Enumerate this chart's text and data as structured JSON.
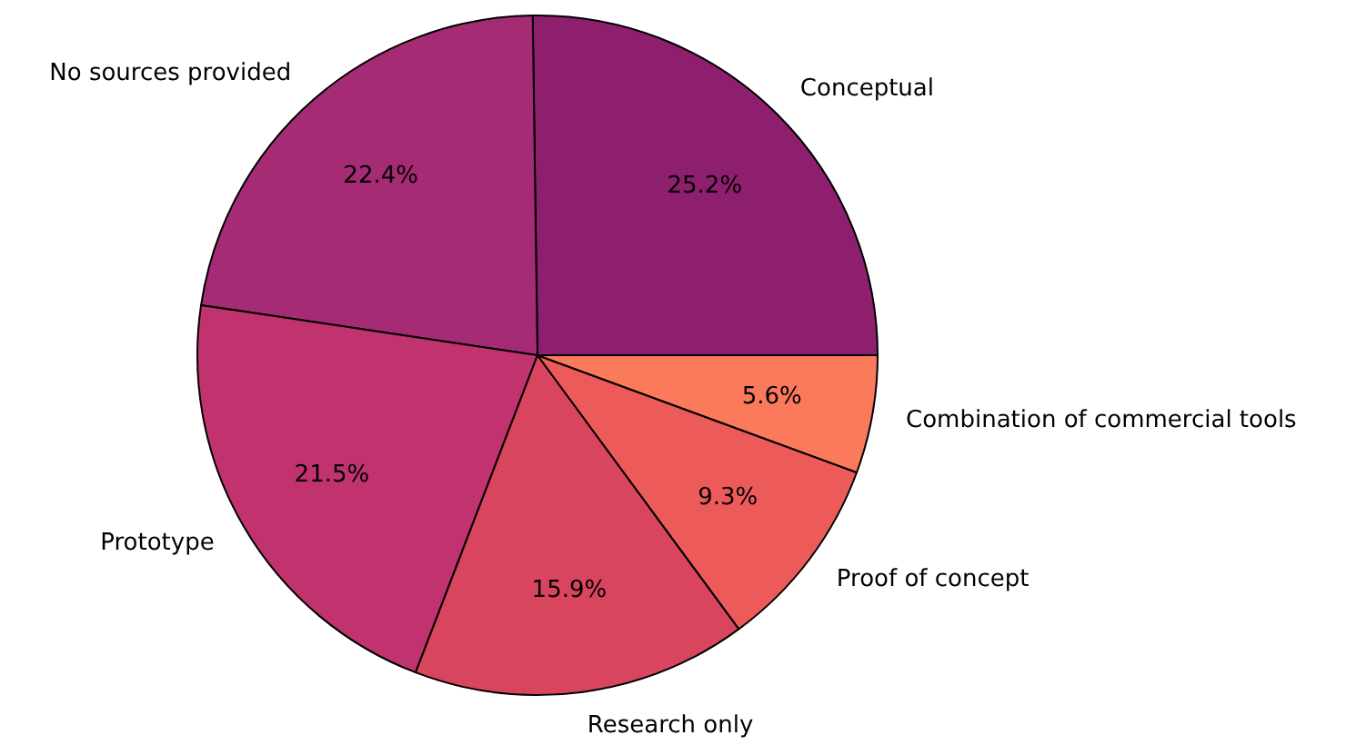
{
  "chart_data": {
    "type": "pie",
    "categories": [
      "Conceptual",
      "No sources provided",
      "Prototype",
      "Research only",
      "Proof of concept",
      "Combination of commercial tools"
    ],
    "values": [
      25.2,
      22.4,
      21.5,
      15.9,
      9.3,
      5.6
    ],
    "colors": [
      "#8e1f6f",
      "#a52b74",
      "#c0336f",
      "#d9445f",
      "#ec5b5a",
      "#fb7a5c"
    ],
    "value_labels": [
      "25.2%",
      "22.4%",
      "21.5%",
      "15.9%",
      "9.3%",
      "5.6%"
    ]
  }
}
